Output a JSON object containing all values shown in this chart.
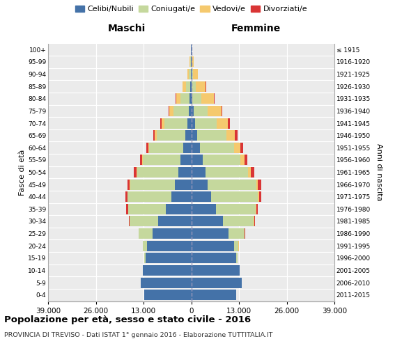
{
  "age_groups": [
    "0-4",
    "5-9",
    "10-14",
    "15-19",
    "20-24",
    "25-29",
    "30-34",
    "35-39",
    "40-44",
    "45-49",
    "50-54",
    "55-59",
    "60-64",
    "65-69",
    "70-74",
    "75-79",
    "80-84",
    "85-89",
    "90-94",
    "95-99",
    "100+"
  ],
  "birth_years": [
    "2011-2015",
    "2006-2010",
    "2001-2005",
    "1996-2000",
    "1991-1995",
    "1986-1990",
    "1981-1985",
    "1976-1980",
    "1971-1975",
    "1966-1970",
    "1961-1965",
    "1956-1960",
    "1951-1955",
    "1946-1950",
    "1941-1945",
    "1936-1940",
    "1931-1935",
    "1926-1930",
    "1921-1925",
    "1916-1920",
    "≤ 1915"
  ],
  "colors": {
    "celibe": "#4472a8",
    "coniugato": "#c5d89d",
    "vedovo": "#f5c96e",
    "divorziato": "#d93535"
  },
  "maschi_celibe": [
    12800,
    13800,
    13200,
    12500,
    12000,
    10500,
    9000,
    7000,
    5500,
    4500,
    3600,
    2900,
    2200,
    1600,
    1100,
    700,
    400,
    200,
    120,
    80,
    30
  ],
  "maschi_coniugato": [
    0,
    0,
    0,
    280,
    1100,
    3800,
    7800,
    10200,
    11800,
    12200,
    11200,
    10200,
    9200,
    7800,
    6200,
    4200,
    2600,
    1300,
    500,
    170,
    60
  ],
  "maschi_vedovo": [
    0,
    0,
    0,
    0,
    0,
    8,
    25,
    50,
    70,
    90,
    140,
    190,
    330,
    480,
    750,
    1050,
    1150,
    850,
    450,
    160,
    40
  ],
  "maschi_divorziato": [
    0,
    0,
    0,
    8,
    25,
    90,
    230,
    420,
    560,
    660,
    760,
    660,
    570,
    470,
    330,
    190,
    95,
    75,
    45,
    18,
    4
  ],
  "femmine_celibe": [
    12300,
    13700,
    13200,
    12200,
    11700,
    10200,
    8700,
    6800,
    5400,
    4500,
    3800,
    3100,
    2400,
    1700,
    1100,
    650,
    360,
    180,
    90,
    55,
    18
  ],
  "femmine_coniugato": [
    0,
    0,
    0,
    330,
    1200,
    4300,
    8300,
    10700,
    12700,
    13200,
    11700,
    10300,
    9300,
    7800,
    5800,
    3900,
    2400,
    1100,
    360,
    130,
    35
  ],
  "femmine_vedovo": [
    0,
    0,
    0,
    0,
    8,
    35,
    90,
    190,
    330,
    470,
    750,
    1100,
    1700,
    2400,
    3100,
    3700,
    3400,
    2700,
    1400,
    460,
    130
  ],
  "femmine_divorziato": [
    0,
    0,
    0,
    8,
    35,
    110,
    280,
    520,
    710,
    860,
    960,
    860,
    770,
    670,
    480,
    285,
    140,
    75,
    36,
    13,
    3
  ],
  "xlim": 39000,
  "xtick_vals": [
    -39000,
    -26000,
    -13000,
    0,
    13000,
    26000,
    39000
  ],
  "xtick_labels": [
    "39.000",
    "26.000",
    "13.000",
    "0",
    "13.000",
    "26.000",
    "39.000"
  ],
  "title": "Popolazione per età, sesso e stato civile - 2016",
  "subtitle": "PROVINCIA DI TREVISO - Dati ISTAT 1° gennaio 2016 - Elaborazione TUTTITALIA.IT",
  "ylabel_left": "Fasce di età",
  "ylabel_right": "Anni di nascita",
  "label_maschi": "Maschi",
  "label_femmine": "Femmine",
  "legend_labels": [
    "Celibi/Nubili",
    "Coniugati/e",
    "Vedovi/e",
    "Divorziati/e"
  ],
  "bar_height": 0.85
}
